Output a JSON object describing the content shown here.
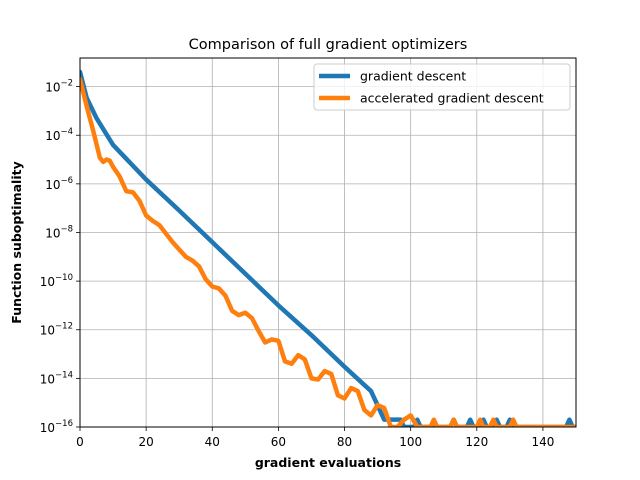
{
  "chart_data": {
    "type": "line",
    "title": "Comparison of full gradient optimizers",
    "xlabel": "gradient evaluations",
    "ylabel": "Function suboptimality",
    "xlim": [
      0,
      150
    ],
    "ylim": [
      1e-16,
      0.15
    ],
    "yscale": "log",
    "grid": true,
    "legend_position": "top-right",
    "xticks": [
      0,
      20,
      40,
      60,
      80,
      100,
      120,
      140
    ],
    "xtick_labels": [
      "0",
      "20",
      "40",
      "60",
      "80",
      "100",
      "120",
      "140"
    ],
    "yticks": [
      -16,
      -14,
      -12,
      -10,
      -8,
      -6,
      -4,
      -2
    ],
    "ytick_labels": [
      {
        "base": "10",
        "exp": "−16"
      },
      {
        "base": "10",
        "exp": "−14"
      },
      {
        "base": "10",
        "exp": "−12"
      },
      {
        "base": "10",
        "exp": "−10"
      },
      {
        "base": "10",
        "exp": "−8"
      },
      {
        "base": "10",
        "exp": "−6"
      },
      {
        "base": "10",
        "exp": "−4"
      },
      {
        "base": "10",
        "exp": "−2"
      }
    ],
    "series": [
      {
        "name": "gradient descent",
        "color": "#1f77b4",
        "points": [
          [
            0,
            0.04
          ],
          [
            2,
            0.0035
          ],
          [
            5,
            0.0005
          ],
          [
            10,
            4e-05
          ],
          [
            20,
            1.5e-06
          ],
          [
            30,
            8e-08
          ],
          [
            40,
            4e-09
          ],
          [
            50,
            2e-10
          ],
          [
            60,
            1e-11
          ],
          [
            70,
            6e-13
          ],
          [
            80,
            3e-14
          ],
          [
            88,
            3e-15
          ],
          [
            92,
            2e-16
          ],
          [
            97,
            2e-16
          ],
          [
            98,
            1e-16
          ],
          [
            101,
            1e-16
          ],
          [
            102,
            2e-16
          ],
          [
            103,
            1e-16
          ],
          [
            112,
            1e-16
          ],
          [
            113,
            2e-16
          ],
          [
            114,
            1e-16
          ],
          [
            117,
            1e-16
          ],
          [
            118,
            2e-16
          ],
          [
            119,
            1e-16
          ],
          [
            121,
            1e-16
          ],
          [
            122,
            2e-16
          ],
          [
            123,
            1e-16
          ],
          [
            125,
            1e-16
          ],
          [
            126,
            2e-16
          ],
          [
            127,
            1e-16
          ],
          [
            129,
            1e-16
          ],
          [
            130,
            2e-16
          ],
          [
            131,
            1e-16
          ],
          [
            147,
            1e-16
          ],
          [
            148,
            2e-16
          ],
          [
            149,
            1e-16
          ],
          [
            150,
            1e-16
          ]
        ]
      },
      {
        "name": "accelerated gradient descent",
        "color": "#ff7f0e",
        "points": [
          [
            0,
            0.02
          ],
          [
            2,
            0.0016
          ],
          [
            4,
            0.00015
          ],
          [
            6,
            1.2e-05
          ],
          [
            7,
            8e-06
          ],
          [
            8,
            1e-05
          ],
          [
            9,
            9e-06
          ],
          [
            10,
            5e-06
          ],
          [
            12,
            2e-06
          ],
          [
            14,
            5e-07
          ],
          [
            16,
            4.5e-07
          ],
          [
            18,
            2e-07
          ],
          [
            20,
            5e-08
          ],
          [
            22,
            3e-08
          ],
          [
            24,
            2e-08
          ],
          [
            26,
            9e-09
          ],
          [
            28,
            4e-09
          ],
          [
            30,
            2e-09
          ],
          [
            32,
            1e-09
          ],
          [
            34,
            7e-10
          ],
          [
            36,
            4e-10
          ],
          [
            38,
            1.2e-10
          ],
          [
            40,
            6e-11
          ],
          [
            42,
            5e-11
          ],
          [
            44,
            2.5e-11
          ],
          [
            46,
            6e-12
          ],
          [
            48,
            4e-12
          ],
          [
            50,
            5e-12
          ],
          [
            52,
            3e-12
          ],
          [
            54,
            9e-13
          ],
          [
            56,
            3e-13
          ],
          [
            58,
            4e-13
          ],
          [
            60,
            3.5e-13
          ],
          [
            62,
            5e-14
          ],
          [
            64,
            4e-14
          ],
          [
            66,
            9e-14
          ],
          [
            68,
            6e-14
          ],
          [
            70,
            1e-14
          ],
          [
            72,
            9e-15
          ],
          [
            74,
            2e-14
          ],
          [
            76,
            1.5e-14
          ],
          [
            78,
            2e-15
          ],
          [
            80,
            1.5e-15
          ],
          [
            82,
            4e-15
          ],
          [
            84,
            3e-15
          ],
          [
            86,
            5e-16
          ],
          [
            88,
            3e-16
          ],
          [
            90,
            8e-16
          ],
          [
            92,
            6e-16
          ],
          [
            94,
            1e-16
          ],
          [
            96,
            1e-16
          ],
          [
            98,
            2e-16
          ],
          [
            100,
            3e-16
          ],
          [
            102,
            1e-16
          ],
          [
            106,
            1e-16
          ],
          [
            107,
            2e-16
          ],
          [
            108,
            1e-16
          ],
          [
            112,
            1e-16
          ],
          [
            113,
            2e-16
          ],
          [
            114,
            1e-16
          ],
          [
            120,
            1e-16
          ],
          [
            121,
            2e-16
          ],
          [
            122,
            1e-16
          ],
          [
            124,
            1e-16
          ],
          [
            125,
            2e-16
          ],
          [
            126,
            1e-16
          ],
          [
            130,
            1e-16
          ],
          [
            131,
            2e-16
          ],
          [
            132,
            1e-16
          ],
          [
            150,
            1e-16
          ]
        ]
      }
    ]
  }
}
